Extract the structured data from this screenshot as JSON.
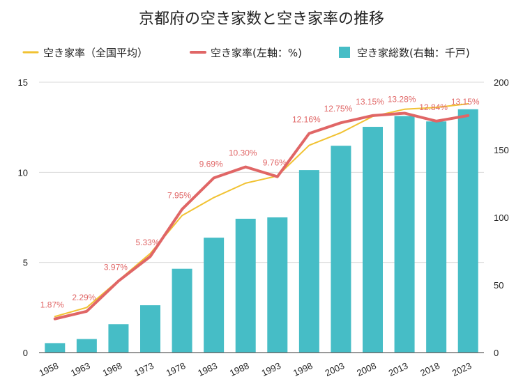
{
  "chart_data": {
    "type": "bar",
    "title": "京都府の空き家数と空き家率の推移",
    "categories": [
      "1958",
      "1963",
      "1968",
      "1973",
      "1978",
      "1983",
      "1988",
      "1993",
      "1998",
      "2003",
      "2008",
      "2013",
      "2018",
      "2023"
    ],
    "series": [
      {
        "name": "空き家総数(右軸：千戸)",
        "type": "bar",
        "axis": "right",
        "color": "#46bdc6",
        "values": [
          7,
          10,
          21,
          35,
          62,
          85,
          99,
          100,
          135,
          153,
          167,
          175,
          171,
          180
        ]
      },
      {
        "name": "空き家率(左軸：%)",
        "type": "line",
        "axis": "left",
        "color": "#e06666",
        "values": [
          1.87,
          2.29,
          3.97,
          5.33,
          7.95,
          9.69,
          10.3,
          9.76,
          12.16,
          12.75,
          13.15,
          13.28,
          12.84,
          13.15
        ],
        "labels": [
          "1.87%",
          "2.29%",
          "3.97%",
          "5.33%",
          "7.95%",
          "9.69%",
          "10.30%",
          "9.76%",
          "12.16%",
          "12.75%",
          "13.15%",
          "13.28%",
          "12.84%",
          "13.15%"
        ]
      },
      {
        "name": "空き家率（全国平均）",
        "type": "line",
        "axis": "left",
        "color": "#f1c232",
        "values": [
          2.0,
          2.5,
          4.0,
          5.5,
          7.6,
          8.6,
          9.4,
          9.8,
          11.5,
          12.2,
          13.1,
          13.5,
          13.6,
          13.8
        ]
      }
    ],
    "left_axis": {
      "min": 0,
      "max": 15,
      "ticks": [
        0,
        5,
        10,
        15
      ]
    },
    "right_axis": {
      "min": 0,
      "max": 200,
      "ticks": [
        0,
        50,
        100,
        150,
        200
      ]
    },
    "legend_order": [
      "空き家率（全国平均）",
      "空き家率(左軸：%)",
      "空き家総数(右軸：千戸)"
    ],
    "legend_position": "top",
    "grid": true
  }
}
